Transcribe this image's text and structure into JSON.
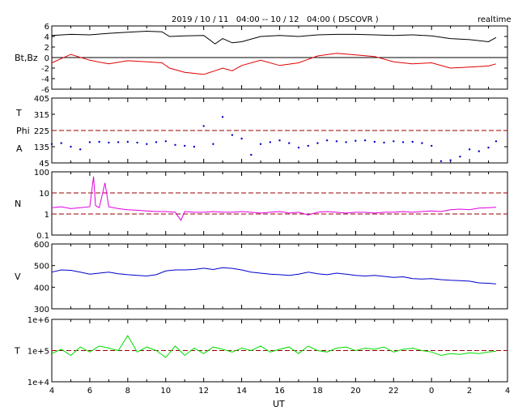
{
  "header": {
    "title": "2019 / 10 / 11   04:00 -- 10 / 12   04:00 ( DSCOVR )",
    "mode": "realtime"
  },
  "x_axis": {
    "label": "UT",
    "tick_labels": [
      "4",
      "6",
      "8",
      "10",
      "12",
      "14",
      "16",
      "18",
      "20",
      "22",
      "0",
      "2",
      "4"
    ]
  },
  "colors": {
    "bt": "#000000",
    "bz": "#e00000",
    "phi": "#0000cc",
    "density": "#e000e0",
    "speed": "#0000cc",
    "temperature": "#00dd00",
    "reference": "#990000"
  },
  "chart_data": [
    {
      "type": "line",
      "ylabel": "Bt,Bz",
      "ylim": [
        -6,
        6
      ],
      "yticks": [
        "6",
        "4",
        "2",
        "0",
        "-2",
        "-4",
        "-6"
      ],
      "reference_lines": [
        0
      ],
      "x": [
        4,
        5,
        6,
        7,
        8,
        9,
        9.8,
        10.2,
        11,
        12,
        12.6,
        13,
        13.5,
        14,
        15,
        16,
        17,
        18,
        19,
        20,
        21,
        22,
        23,
        24,
        25,
        26,
        27,
        27.4
      ],
      "series": [
        {
          "name": "Bt",
          "values": [
            4.2,
            4.4,
            4.3,
            4.6,
            4.8,
            5.0,
            4.9,
            4.0,
            4.1,
            4.2,
            2.6,
            3.6,
            2.8,
            3.0,
            4.0,
            4.2,
            4.0,
            4.3,
            4.4,
            4.4,
            4.3,
            4.2,
            4.3,
            4.1,
            3.6,
            3.4,
            3.0,
            3.8
          ]
        },
        {
          "name": "Bz",
          "values": [
            -1.0,
            0.6,
            -0.5,
            -1.2,
            -0.6,
            -0.8,
            -1.0,
            -2.0,
            -2.8,
            -3.2,
            -2.5,
            -2.0,
            -2.5,
            -1.5,
            -0.5,
            -1.5,
            -1.0,
            0.3,
            0.8,
            0.5,
            0.2,
            -0.8,
            -1.2,
            -1.0,
            -2.0,
            -1.8,
            -1.6,
            -1.2
          ]
        }
      ]
    },
    {
      "type": "scatter",
      "ylabel_lines": [
        "T",
        "Phi",
        "A"
      ],
      "ylim": [
        45,
        405
      ],
      "yticks": [
        "405",
        "315",
        "225",
        "135",
        "45"
      ],
      "reference_lines": [
        225
      ],
      "x": [
        4,
        4.5,
        5,
        5.5,
        6,
        6.5,
        7,
        7.5,
        8,
        8.5,
        9,
        9.5,
        10,
        10.5,
        11,
        11.5,
        12,
        12.5,
        13,
        13.5,
        14,
        14.5,
        15,
        15.5,
        16,
        16.5,
        17,
        17.5,
        18,
        18.5,
        19,
        19.5,
        20,
        20.5,
        21,
        21.5,
        22,
        22.5,
        23,
        23.5,
        24,
        24.5,
        25,
        25.5,
        26,
        26.5,
        27,
        27.4
      ],
      "series": [
        {
          "name": "Phi",
          "values": [
            150,
            155,
            135,
            120,
            160,
            162,
            158,
            160,
            162,
            158,
            150,
            160,
            165,
            145,
            140,
            135,
            250,
            150,
            300,
            200,
            180,
            90,
            150,
            160,
            170,
            155,
            130,
            140,
            155,
            170,
            165,
            160,
            168,
            170,
            162,
            158,
            165,
            160,
            162,
            155,
            140,
            55,
            60,
            80,
            120,
            110,
            130,
            165
          ]
        }
      ]
    },
    {
      "type": "line",
      "ylabel": "N",
      "ylog": true,
      "ylim": [
        0.1,
        100
      ],
      "yticks": [
        "100",
        "10",
        "1",
        "0.1"
      ],
      "reference_lines": [
        10,
        1
      ],
      "x": [
        4,
        4.5,
        5,
        5.5,
        6,
        6.2,
        6.3,
        6.5,
        6.8,
        7,
        7.5,
        8,
        8.5,
        9,
        9.5,
        10,
        10.5,
        10.8,
        11,
        11.5,
        12,
        12.5,
        13,
        13.5,
        14,
        14.5,
        15,
        15.5,
        16,
        16.5,
        17,
        17.5,
        18,
        18.5,
        19,
        19.5,
        20,
        20.5,
        21,
        21.5,
        22,
        22.5,
        23,
        23.5,
        24,
        24.5,
        25,
        25.5,
        26,
        26.5,
        27,
        27.4
      ],
      "series": [
        {
          "name": "N",
          "values": [
            2.0,
            2.2,
            1.8,
            2.0,
            2.2,
            60,
            2.5,
            2.0,
            30,
            2.2,
            1.8,
            1.6,
            1.5,
            1.4,
            1.3,
            1.3,
            1.2,
            0.5,
            1.3,
            1.2,
            1.2,
            1.3,
            1.2,
            1.2,
            1.3,
            1.2,
            1.1,
            1.2,
            1.3,
            1.1,
            1.2,
            0.9,
            1.2,
            1.3,
            1.2,
            1.1,
            1.2,
            1.2,
            1.1,
            1.2,
            1.2,
            1.3,
            1.2,
            1.3,
            1.4,
            1.3,
            1.6,
            1.7,
            1.6,
            1.9,
            2.0,
            2.1
          ]
        }
      ]
    },
    {
      "type": "line",
      "ylabel": "V",
      "ylim": [
        300,
        600
      ],
      "yticks": [
        "600",
        "500",
        "400",
        "300"
      ],
      "reference_lines": [],
      "x": [
        4,
        4.5,
        5,
        5.5,
        6,
        6.5,
        7,
        7.5,
        8,
        8.5,
        9,
        9.5,
        10,
        10.5,
        11,
        11.5,
        12,
        12.5,
        13,
        13.5,
        14,
        14.5,
        15,
        15.5,
        16,
        16.5,
        17,
        17.5,
        18,
        18.5,
        19,
        19.5,
        20,
        20.5,
        21,
        21.5,
        22,
        22.5,
        23,
        23.5,
        24,
        24.5,
        25,
        25.5,
        26,
        26.5,
        27,
        27.4
      ],
      "series": [
        {
          "name": "V",
          "values": [
            470,
            480,
            478,
            470,
            460,
            465,
            470,
            462,
            458,
            455,
            452,
            458,
            475,
            480,
            480,
            482,
            488,
            482,
            490,
            487,
            480,
            470,
            465,
            460,
            458,
            455,
            460,
            470,
            462,
            458,
            465,
            460,
            455,
            452,
            455,
            450,
            445,
            448,
            440,
            438,
            440,
            435,
            432,
            430,
            428,
            420,
            418,
            415
          ]
        }
      ]
    },
    {
      "type": "line",
      "ylabel": "T",
      "ylog": true,
      "ylim": [
        10000,
        1000000
      ],
      "yticks": [
        "1e+6",
        "1e+5",
        "1e+4"
      ],
      "reference_lines": [
        100000
      ],
      "x": [
        4,
        4.5,
        5,
        5.5,
        6,
        6.5,
        7,
        7.5,
        8,
        8.5,
        9,
        9.5,
        10,
        10.5,
        11,
        11.5,
        12,
        12.5,
        13,
        13.5,
        14,
        14.5,
        15,
        15.5,
        16,
        16.5,
        17,
        17.5,
        18,
        18.5,
        19,
        19.5,
        20,
        20.5,
        21,
        21.5,
        22,
        22.5,
        23,
        23.5,
        24,
        24.5,
        25,
        25.5,
        26,
        26.5,
        27,
        27.4
      ],
      "series": [
        {
          "name": "T",
          "values": [
            80000,
            110000,
            70000,
            130000,
            90000,
            140000,
            120000,
            100000,
            300000,
            90000,
            130000,
            100000,
            60000,
            140000,
            70000,
            120000,
            80000,
            130000,
            110000,
            90000,
            120000,
            100000,
            140000,
            90000,
            110000,
            130000,
            80000,
            140000,
            100000,
            90000,
            120000,
            130000,
            100000,
            120000,
            110000,
            130000,
            90000,
            110000,
            120000,
            100000,
            90000,
            70000,
            80000,
            75000,
            85000,
            80000,
            90000,
            95000
          ]
        }
      ]
    }
  ]
}
